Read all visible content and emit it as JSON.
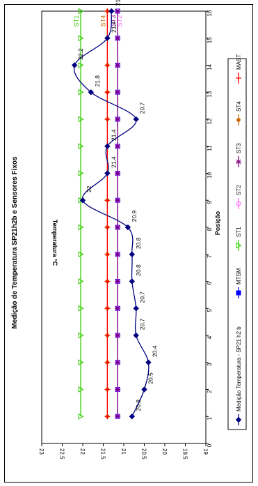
{
  "chart_data": {
    "type": "line",
    "title": "Medição de Temperatura SP21h2b e Sensores Fixos",
    "xlabel": "Posição",
    "ylabel": "Temperatura °C",
    "xlim": [
      0,
      16
    ],
    "ylim": [
      19,
      23
    ],
    "x_ticks": [
      "0",
      "1",
      "2",
      "3",
      "4",
      "5",
      "6",
      "7",
      "8",
      "9",
      "10",
      "11",
      "12",
      "13",
      "14",
      "15",
      "16"
    ],
    "y_ticks": [
      "19",
      "19.5",
      "20",
      "20.5",
      "21",
      "21.5",
      "22",
      "22.5",
      "23"
    ],
    "grid": false,
    "legend_position": "bottom",
    "series": [
      {
        "name": "Medição Temperatura - SP21 h2 b",
        "color": "#000080",
        "marker": "diamond",
        "x": [
          1,
          2,
          3,
          4,
          5,
          6,
          7,
          8,
          9,
          10,
          11,
          12,
          13,
          14,
          15,
          16
        ],
        "values": [
          20.8,
          20.5,
          20.4,
          20.7,
          20.7,
          20.8,
          20.8,
          20.9,
          22,
          21.4,
          21.4,
          20.7,
          21.8,
          22.2,
          21.4,
          21.3
        ],
        "data_labels": [
          "20.8",
          "20.5",
          "20.4",
          "20.7",
          "20.7",
          "20.8",
          "20.8",
          "20.9",
          "22",
          "21.4",
          "21.4",
          "20.7",
          "21.8",
          "22.2",
          "21.4",
          "21.3"
        ]
      },
      {
        "name": "MTSM",
        "color": "#0000ff",
        "marker": "square",
        "x": [
          1,
          2,
          3,
          4,
          5,
          6,
          7,
          8,
          9,
          10,
          11,
          12,
          13,
          14,
          15,
          16
        ],
        "values": [
          21.15,
          21.15,
          21.15,
          21.15,
          21.15,
          21.15,
          21.15,
          21.15,
          21.15,
          21.15,
          21.15,
          21.15,
          21.15,
          21.15,
          21.15,
          21.15
        ]
      },
      {
        "name": "ST1",
        "color": "#33cc00",
        "marker": "triangle",
        "x": [
          1,
          2,
          3,
          4,
          5,
          6,
          7,
          8,
          9,
          10,
          11,
          12,
          13,
          14,
          15,
          16
        ],
        "values": [
          22.05,
          22.05,
          22.05,
          22.05,
          22.05,
          22.05,
          22.05,
          22.05,
          22.05,
          22.05,
          22.05,
          22.05,
          22.05,
          22.05,
          22.05,
          22.05
        ],
        "end_label": "ST1"
      },
      {
        "name": "ST2",
        "color": "#ff66ff",
        "marker": "circle",
        "x": [
          1,
          2,
          3,
          4,
          5,
          6,
          7,
          8,
          9,
          10,
          11,
          12,
          13,
          14,
          15,
          16
        ],
        "values": [
          21.15,
          21.15,
          21.15,
          21.15,
          21.15,
          21.15,
          21.15,
          21.15,
          21.15,
          21.15,
          21.15,
          21.15,
          21.15,
          21.15,
          21.15,
          21.15
        ],
        "end_label": "ST2"
      },
      {
        "name": "ST3",
        "color": "#800080",
        "marker": "star",
        "x": [
          1,
          2,
          3,
          4,
          5,
          6,
          7,
          8,
          9,
          10,
          11,
          12,
          13,
          14,
          15,
          16
        ],
        "values": [
          21.15,
          21.15,
          21.15,
          21.15,
          21.15,
          21.15,
          21.15,
          21.15,
          21.15,
          21.15,
          21.15,
          21.15,
          21.15,
          21.15,
          21.15,
          21.15
        ],
        "end_label": "ST3"
      },
      {
        "name": "ST4",
        "color": "#cc6600",
        "marker": "dot",
        "x": [
          1,
          2,
          3,
          4,
          5,
          6,
          7,
          8,
          9,
          10,
          11,
          12,
          13,
          14,
          15,
          16
        ],
        "values": [
          21.4,
          21.4,
          21.4,
          21.4,
          21.4,
          21.4,
          21.4,
          21.4,
          21.4,
          21.4,
          21.4,
          21.4,
          21.4,
          21.4,
          21.4,
          21.4
        ],
        "end_label": "ST4"
      },
      {
        "name": "MAST",
        "color": "#ff0000",
        "marker": "plus",
        "x": [
          1,
          2,
          3,
          4,
          5,
          6,
          7,
          8,
          9,
          10,
          11,
          12,
          13,
          14,
          15,
          16
        ],
        "values": [
          21.4,
          21.4,
          21.4,
          21.4,
          21.4,
          21.4,
          21.4,
          21.4,
          21.4,
          21.4,
          21.4,
          21.4,
          21.4,
          21.4,
          21.4,
          21.4
        ]
      }
    ]
  }
}
